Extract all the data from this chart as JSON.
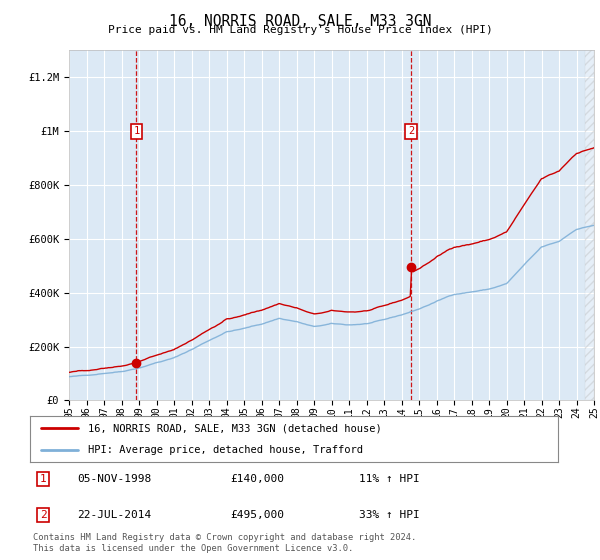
{
  "title": "16, NORRIS ROAD, SALE, M33 3GN",
  "subtitle": "Price paid vs. HM Land Registry's House Price Index (HPI)",
  "ylim": [
    0,
    1300000
  ],
  "yticks": [
    0,
    200000,
    400000,
    600000,
    800000,
    1000000,
    1200000
  ],
  "ytick_labels": [
    "£0",
    "£200K",
    "£400K",
    "£600K",
    "£800K",
    "£1M",
    "£1.2M"
  ],
  "x_start_year": 1995,
  "x_end_year": 2025,
  "background_color": "#ffffff",
  "plot_bg_color": "#dce9f5",
  "grid_color": "#c8d8e8",
  "sale1_year": 1998.85,
  "sale1_price": 140000,
  "sale2_year": 2014.55,
  "sale2_price": 495000,
  "red_line_color": "#cc0000",
  "blue_line_color": "#7fb0d8",
  "vline_color": "#cc0000",
  "legend_line1": "16, NORRIS ROAD, SALE, M33 3GN (detached house)",
  "legend_line2": "HPI: Average price, detached house, Trafford",
  "annot1_num": "1",
  "annot1_date": "05-NOV-1998",
  "annot1_price": "£140,000",
  "annot1_hpi": "11% ↑ HPI",
  "annot2_num": "2",
  "annot2_date": "22-JUL-2014",
  "annot2_price": "£495,000",
  "annot2_hpi": "33% ↑ HPI",
  "footer": "Contains HM Land Registry data © Crown copyright and database right 2024.\nThis data is licensed under the Open Government Licence v3.0."
}
